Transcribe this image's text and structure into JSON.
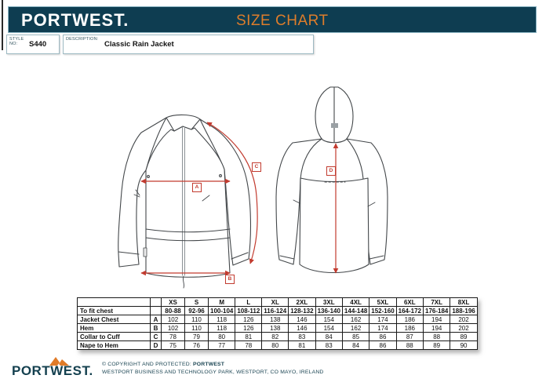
{
  "header": {
    "brand": "PORTWEST.",
    "title": "SIZE CHART",
    "style_label": "STYLE NO:",
    "style_value": "S440",
    "description_label": "DESCRIPTION:",
    "description_value": "Classic Rain Jacket",
    "bar_color": "#0e3d51",
    "accent_color": "#dd7d2b"
  },
  "diagram": {
    "front_view": "jacket front with zip, chest line A, hem line B, collar-to-cuff line C",
    "back_view": "hooded jacket back with nape-to-hem line D",
    "measure_labels": [
      "A",
      "B",
      "C",
      "D"
    ],
    "measure_color": "#c23b2f"
  },
  "table": {
    "size_headers": [
      "XS",
      "S",
      "M",
      "L",
      "XL",
      "2XL",
      "3XL",
      "4XL",
      "5XL",
      "6XL",
      "7XL",
      "8XL"
    ],
    "rows": [
      {
        "label": "To fit chest",
        "letter": "",
        "bold": true,
        "values": [
          "80-88",
          "92-96",
          "100-104",
          "108-112",
          "116-124",
          "128-132",
          "136-140",
          "144-148",
          "152-160",
          "164-172",
          "176-184",
          "188-196"
        ]
      },
      {
        "label": "Jacket Chest",
        "letter": "A",
        "bold": false,
        "values": [
          "102",
          "110",
          "118",
          "126",
          "138",
          "146",
          "154",
          "162",
          "174",
          "186",
          "194",
          "202"
        ]
      },
      {
        "label": "Hem",
        "letter": "B",
        "bold": false,
        "values": [
          "102",
          "110",
          "118",
          "126",
          "138",
          "146",
          "154",
          "162",
          "174",
          "186",
          "194",
          "202"
        ]
      },
      {
        "label": "Collar to Cuff",
        "letter": "C",
        "bold": false,
        "values": [
          "78",
          "79",
          "80",
          "81",
          "82",
          "83",
          "84",
          "85",
          "86",
          "87",
          "88",
          "89"
        ]
      },
      {
        "label": "Nape to Hem",
        "letter": "D",
        "bold": false,
        "values": [
          "75",
          "76",
          "77",
          "78",
          "80",
          "81",
          "83",
          "84",
          "86",
          "88",
          "89",
          "90"
        ]
      }
    ]
  },
  "footer": {
    "brand": "PORTWEST.",
    "copyright_prefix": "© COPYRIGHT AND PROTECTED: ",
    "copyright_brand": "PORTWEST",
    "address": "WESTPORT BUSINESS AND TECHNOLOGY PARK, WESTPORT, CO MAYO, IRELAND"
  }
}
